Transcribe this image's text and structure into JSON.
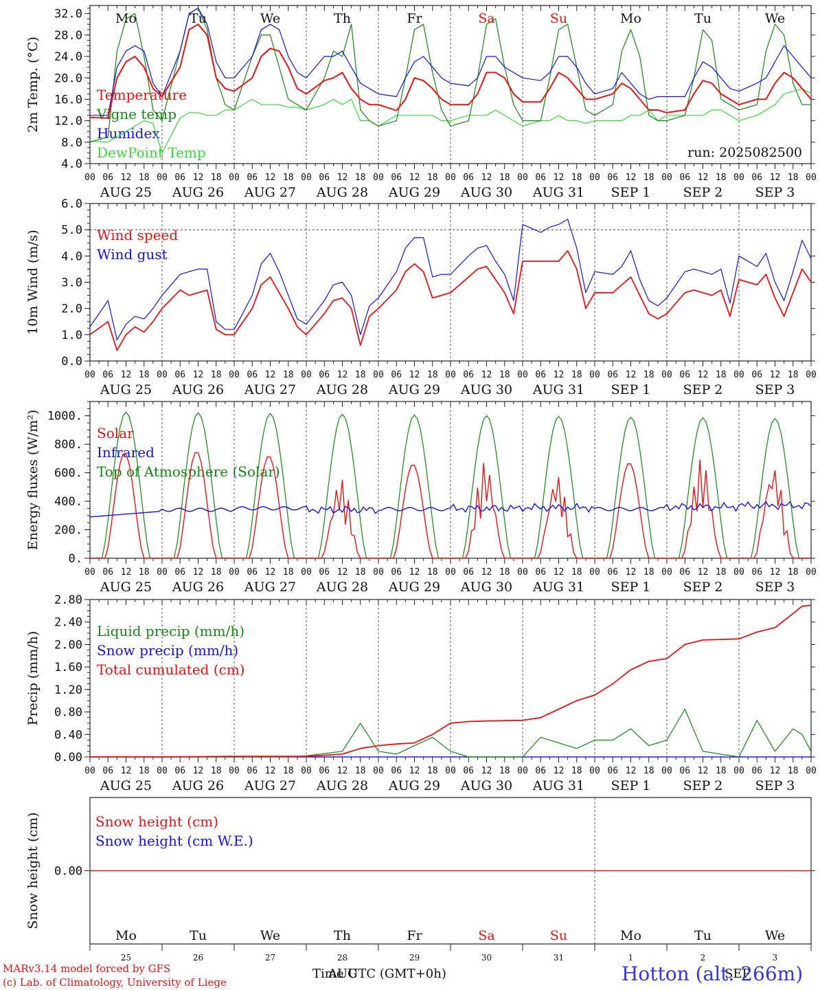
{
  "run_label": "run: 2025082500",
  "footer": {
    "model": "MARv3.14 model forced by GFS",
    "copyright": "(c) Lab. of Climatology, University of Liege",
    "station": "Hotton (alt. 266m)",
    "time_label": "Time UTC (GMT+0h)",
    "month_overlay": "AUG",
    "month_overlay2": "SEP"
  },
  "days": {
    "names": [
      "Mo",
      "Tu",
      "We",
      "Th",
      "Fr",
      "Sa",
      "Su",
      "Mo",
      "Tu",
      "We"
    ],
    "weekend_idx": [
      5,
      6
    ],
    "dates": [
      "AUG 25",
      "AUG 26",
      "AUG 27",
      "AUG 28",
      "AUG 29",
      "AUG 30",
      "AUG 31",
      "SEP  1",
      "SEP  2",
      "SEP  3"
    ],
    "day_numbers": [
      "25",
      "26",
      "27",
      "28",
      "29",
      "30",
      "31",
      "1",
      "2",
      "3"
    ],
    "hour_ticks": [
      "00",
      "06",
      "12",
      "18"
    ],
    "last_tick": "00"
  },
  "colors": {
    "red": "#ee1111",
    "green": "#118811",
    "blue": "#1111ee",
    "lightgreen": "#33dd33",
    "weekend": "#ee1111"
  },
  "chart_data": [
    {
      "type": "line",
      "ylabel": "2m Temp. (°C)",
      "ylim": [
        4,
        33.5
      ],
      "yticks": [
        "4.0",
        "8.0",
        "12.0",
        "16.0",
        "20.0",
        "24.0",
        "28.0",
        "32.0"
      ],
      "grid": "vertical dotted at day boundaries",
      "legend": [
        {
          "name": "Temperature",
          "color": "#ee1111"
        },
        {
          "name": "Vigne temp",
          "color": "#118811"
        },
        {
          "name": "Humidex",
          "color": "#1111ee"
        },
        {
          "name": "DewPoint Temp",
          "color": "#33dd33"
        }
      ],
      "x_hours": [
        0,
        6,
        9,
        12,
        15,
        18,
        21,
        24,
        30,
        33,
        36,
        39,
        42,
        45,
        48,
        54,
        57,
        60,
        63,
        66,
        69,
        72,
        78,
        81,
        84,
        87,
        90,
        93,
        96,
        102,
        105,
        108,
        111,
        114,
        117,
        120,
        126,
        129,
        132,
        135,
        138,
        141,
        144,
        150,
        153,
        156,
        159,
        162,
        165,
        168,
        174,
        177,
        180,
        183,
        186,
        189,
        192,
        198,
        201,
        204,
        207,
        210,
        213,
        216,
        222,
        225,
        228,
        231,
        234,
        237,
        240
      ],
      "series": [
        {
          "name": "Temperature",
          "color": "#ee1111",
          "values": [
            12.6,
            12.5,
            20,
            23,
            24,
            22,
            18,
            16.5,
            22,
            29,
            30,
            28,
            20,
            18,
            17.5,
            20,
            24,
            25.5,
            25,
            22,
            18,
            17,
            19.5,
            20,
            21,
            18,
            16,
            15,
            15,
            13.9,
            16,
            20,
            19.5,
            18,
            16,
            15,
            15,
            17,
            21,
            21,
            20,
            17,
            15.5,
            15.5,
            18,
            21,
            20,
            18,
            16,
            16,
            17,
            19,
            18,
            16,
            14,
            14,
            13.5,
            14,
            17,
            19.5,
            19,
            17,
            16,
            15,
            16,
            16,
            19,
            21,
            20,
            18,
            16
          ]
        },
        {
          "name": "Vigne temp",
          "color": "#118811",
          "values": [
            8,
            9,
            25,
            31,
            32,
            24,
            14,
            12,
            25,
            32,
            33,
            29,
            20,
            15,
            14,
            24,
            28,
            28,
            22,
            16,
            15,
            14,
            20,
            25,
            24,
            30,
            14,
            12,
            11,
            12,
            20,
            29,
            30,
            21,
            14,
            11,
            12,
            20,
            30,
            31,
            22,
            15,
            12,
            12,
            20,
            29,
            30,
            22,
            14,
            13,
            15,
            25,
            29,
            24,
            13,
            12,
            12,
            13,
            20,
            29,
            27,
            16,
            15,
            14,
            15,
            25,
            30,
            28,
            19,
            15,
            15
          ]
        },
        {
          "name": "Humidex",
          "color": "#1111ee",
          "values": [
            13,
            13,
            22,
            25,
            26,
            25,
            19,
            16.5,
            25,
            32,
            33,
            30,
            23,
            20,
            20,
            24,
            29,
            30,
            29,
            24,
            21,
            20,
            24,
            24,
            25,
            22,
            19,
            18,
            17,
            16.5,
            20,
            23,
            24,
            22,
            20,
            19,
            18.5,
            20,
            24,
            24,
            22,
            21,
            20,
            19.5,
            21,
            24,
            24,
            22,
            19,
            17,
            18,
            21,
            19,
            17,
            16,
            16.5,
            16.5,
            16.5,
            20,
            23,
            22,
            20,
            18,
            17.5,
            19,
            20,
            23,
            26,
            24,
            22,
            20
          ]
        },
        {
          "name": "DewPoint Temp",
          "color": "#33dd33",
          "values": [
            8.2,
            8,
            9,
            10,
            11,
            12,
            11.5,
            6,
            12.5,
            13.5,
            13.5,
            13,
            13,
            14,
            14,
            16,
            15,
            15,
            15,
            14.5,
            14.5,
            14,
            15,
            16,
            15,
            16,
            12,
            12,
            11,
            13,
            13,
            13,
            13,
            13,
            12,
            12,
            13,
            13,
            13,
            14,
            13,
            12,
            11,
            12,
            12,
            13,
            12,
            12,
            11.5,
            12,
            12,
            12,
            13,
            13,
            14,
            12,
            13,
            13,
            13,
            13,
            14,
            14,
            13,
            12,
            13,
            14,
            15,
            17,
            17.5,
            18,
            17
          ]
        }
      ]
    },
    {
      "type": "line",
      "ylabel": "10m Wind (m/s)",
      "ylim": [
        0,
        6
      ],
      "yticks": [
        "0.0",
        "1.0",
        "2.0",
        "3.0",
        "4.0",
        "5.0",
        "6.0"
      ],
      "grid": "vertical dotted at day boundaries, horizontal dotted at 5.0",
      "legend": [
        {
          "name": "Wind speed",
          "color": "#ee1111"
        },
        {
          "name": "Wind gust",
          "color": "#1111ee"
        }
      ],
      "x_hours": [
        0,
        6,
        9,
        12,
        15,
        18,
        21,
        24,
        30,
        33,
        36,
        39,
        42,
        45,
        48,
        54,
        57,
        60,
        63,
        66,
        69,
        72,
        78,
        81,
        84,
        87,
        90,
        93,
        96,
        102,
        105,
        108,
        111,
        114,
        117,
        120,
        126,
        129,
        132,
        135,
        138,
        141,
        144,
        150,
        153,
        156,
        159,
        162,
        165,
        168,
        174,
        177,
        180,
        183,
        186,
        189,
        192,
        198,
        201,
        204,
        207,
        210,
        213,
        216,
        222,
        225,
        228,
        231,
        234,
        237,
        240
      ],
      "series": [
        {
          "name": "Wind speed",
          "color": "#ee1111",
          "values": [
            1.0,
            1.5,
            0.4,
            1.0,
            1.3,
            1.1,
            1.5,
            2.0,
            2.7,
            2.5,
            2.6,
            2.7,
            1.2,
            1.0,
            1.0,
            2.0,
            2.9,
            3.2,
            2.6,
            2.0,
            1.3,
            1.0,
            1.8,
            2.3,
            2.4,
            2.0,
            0.6,
            1.7,
            2.0,
            2.7,
            3.4,
            3.7,
            3.4,
            2.4,
            2.5,
            2.6,
            3.2,
            3.5,
            3.6,
            3.1,
            2.6,
            1.8,
            3.8,
            3.8,
            3.8,
            3.8,
            4.2,
            3.5,
            2.0,
            2.6,
            2.6,
            2.9,
            3.2,
            2.5,
            1.8,
            1.6,
            1.8,
            2.6,
            2.7,
            2.6,
            2.5,
            2.7,
            1.7,
            3.1,
            2.9,
            3.3,
            2.4,
            1.7,
            2.6,
            3.5,
            3.0
          ]
        },
        {
          "name": "Wind gust",
          "color": "#1111ee",
          "values": [
            1.3,
            2.3,
            0.8,
            1.4,
            1.7,
            1.6,
            2.0,
            2.5,
            3.3,
            3.4,
            3.5,
            3.5,
            1.5,
            1.2,
            1.2,
            2.5,
            3.7,
            4.1,
            3.4,
            2.5,
            1.6,
            1.4,
            2.3,
            2.9,
            3.0,
            2.5,
            1.0,
            2.1,
            2.4,
            3.4,
            4.3,
            4.7,
            4.7,
            3.2,
            3.3,
            3.3,
            4.0,
            4.3,
            4.4,
            3.8,
            3.3,
            2.3,
            5.2,
            4.9,
            5.1,
            5.2,
            5.4,
            4.3,
            2.6,
            3.4,
            3.3,
            3.6,
            4.2,
            3.1,
            2.3,
            2.1,
            2.4,
            3.4,
            3.5,
            3.4,
            3.3,
            3.5,
            2.2,
            4.0,
            3.6,
            4.1,
            3.0,
            2.3,
            3.4,
            4.6,
            3.9
          ]
        }
      ]
    },
    {
      "type": "line",
      "ylabel": "Energy fluxes (W/m²)",
      "ylim": [
        0,
        1100
      ],
      "yticks": [
        "0.",
        "200.",
        "400.",
        "600.",
        "800.",
        "1000."
      ],
      "grid": "vertical dotted at day boundaries",
      "legend": [
        {
          "name": "Solar",
          "color": "#ee1111"
        },
        {
          "name": "Infrared",
          "color": "#1111ee"
        },
        {
          "name": "Top of Atmosphere (Solar)",
          "color": "#118811"
        }
      ],
      "toa_peaks": [
        1025,
        1020,
        1015,
        1010,
        1005,
        1000,
        995,
        990,
        985,
        980
      ],
      "solar_peaks": [
        740,
        750,
        720,
        560,
        660,
        680,
        590,
        670,
        700,
        660
      ],
      "solar_cloudy_day": [
        false,
        false,
        false,
        true,
        false,
        true,
        true,
        false,
        true,
        true
      ],
      "infrared_base": [
        300,
        340,
        350,
        340,
        345,
        350,
        355,
        345,
        360,
        370
      ]
    },
    {
      "type": "line",
      "ylabel": "Precip (mm/h)",
      "ylim": [
        0,
        2.8
      ],
      "yticks": [
        "0.00",
        "0.40",
        "0.80",
        "1.20",
        "1.60",
        "2.00",
        "2.40",
        "2.80"
      ],
      "grid": "vertical dotted at day boundaries",
      "legend": [
        {
          "name": "Liquid precip (mm/h)",
          "color": "#118811"
        },
        {
          "name": "Snow precip (mm/h)",
          "color": "#1111ee"
        },
        {
          "name": "Total cumulated (cm)",
          "color": "#ee1111"
        }
      ],
      "x_hours": [
        0,
        24,
        48,
        66,
        72,
        84,
        90,
        96,
        102,
        108,
        114,
        120,
        126,
        132,
        144,
        150,
        156,
        162,
        168,
        174,
        180,
        186,
        192,
        198,
        204,
        216,
        222,
        228,
        234,
        237,
        240
      ],
      "series": [
        {
          "name": "Total cumulated (cm)",
          "color": "#ee1111",
          "values": [
            0,
            0,
            0.01,
            0.01,
            0.01,
            0.05,
            0.15,
            0.2,
            0.23,
            0.25,
            0.4,
            0.6,
            0.63,
            0.64,
            0.65,
            0.7,
            0.85,
            1.0,
            1.1,
            1.3,
            1.55,
            1.7,
            1.75,
            2.0,
            2.08,
            2.1,
            2.22,
            2.3,
            2.55,
            2.68,
            2.7
          ]
        },
        {
          "name": "Liquid precip (mm/h)",
          "color": "#118811",
          "values": [
            0,
            0,
            0,
            0,
            0.02,
            0.1,
            0.6,
            0.1,
            0.05,
            0.2,
            0.35,
            0.1,
            0,
            0,
            0,
            0.35,
            0.25,
            0.15,
            0.3,
            0.3,
            0.5,
            0.2,
            0.3,
            0.85,
            0.1,
            0,
            0.65,
            0.1,
            0.5,
            0.4,
            0.1
          ]
        },
        {
          "name": "Snow precip (mm/h)",
          "color": "#1111ee",
          "values": [
            0,
            0,
            0,
            0,
            0,
            0,
            0,
            0,
            0,
            0,
            0,
            0,
            0,
            0,
            0,
            0,
            0,
            0,
            0,
            0,
            0,
            0,
            0,
            0,
            0,
            0,
            0,
            0,
            0,
            0,
            0
          ]
        }
      ]
    },
    {
      "type": "line",
      "ylabel": "Snow height (cm)",
      "yticks": [
        "0.00"
      ],
      "legend": [
        {
          "name": "Snow height (cm)",
          "color": "#ee1111"
        },
        {
          "name": "Snow height (cm W.E.)",
          "color": "#1111ee"
        }
      ],
      "series": [
        {
          "name": "Snow height (cm)",
          "color": "#ee1111",
          "values": [
            0,
            0
          ]
        }
      ]
    }
  ]
}
